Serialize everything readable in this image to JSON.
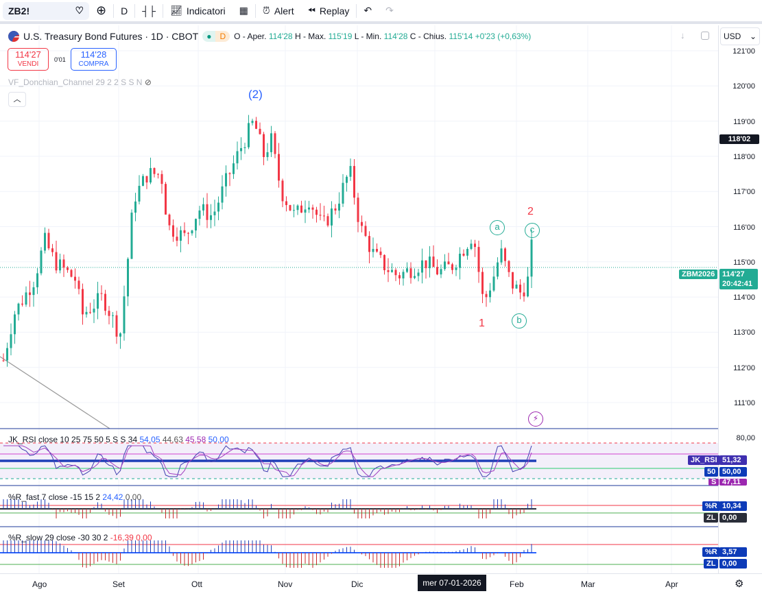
{
  "toolbar": {
    "symbol": "ZB2!",
    "interval": "D",
    "indicators": "Indicatori",
    "alert": "Alert",
    "replay": "Replay"
  },
  "legend": {
    "title": "U.S. Treasury Bond Futures · 1D · CBOT",
    "status": "D",
    "open_label": "O - Aper.",
    "open": "114'28",
    "high_label": "H - Max.",
    "high": "115'19",
    "low_label": "L - Min.",
    "low": "114'28",
    "close_label": "C - Chius.",
    "close": "115'14",
    "change": "+0'23 (+0,63%)"
  },
  "trade": {
    "sell_price": "114'27",
    "sell_label": "VENDI",
    "spread": "0'01",
    "buy_price": "114'28",
    "buy_label": "COMPRA"
  },
  "overlay": {
    "donchian": "VF_Donchian_Channel 29 2 2 S S N"
  },
  "currency": "USD",
  "price_axis": [
    "121'00",
    "120'00",
    "119'00",
    "118'00",
    "117'00",
    "116'00",
    "115'00",
    "114'00",
    "113'00",
    "112'00",
    "111'00"
  ],
  "price_tags": {
    "crosshair": "118'02",
    "contract": "ZBM2026",
    "last": "114'27",
    "countdown": "20:42:41"
  },
  "annotations": {
    "wave_2_paren": "(2)",
    "wave_1": "1",
    "wave_2": "2",
    "a": "a",
    "b": "b",
    "c": "c"
  },
  "rsi": {
    "title": "JK_RSI close 10 25 75 50 5 S S 34",
    "v1": "54,05",
    "v2": "44,63",
    "v3": "45,58",
    "v4": "50,00",
    "axis": "80,00",
    "tag1_label": "JK_RSI",
    "tag1": "51,32",
    "tag2_label": "50",
    "tag2": "50,00",
    "tag3_label": "S",
    "tag3": "47,11"
  },
  "rfast": {
    "title": "%R_fast 7 close -15 15 2",
    "v1": "24,42",
    "v2": "0,00",
    "tag1_label": "%R",
    "tag1": "10,34",
    "tag2_label": "ZL",
    "tag2": "0,00"
  },
  "rslow": {
    "title": "%R_slow 29 close -30 30 2",
    "v1": "-16,39",
    "v2": "0,00",
    "tag1_label": "%R",
    "tag1": "3,57",
    "tag2_label": "ZL",
    "tag2": "0,00"
  },
  "time_axis": [
    "Ago",
    "Set",
    "Ott",
    "Nov",
    "Dic",
    "Feb",
    "Mar",
    "Apr"
  ],
  "time_cursor": "mer 07-01-2026",
  "colors": {
    "up": "#22ab94",
    "down": "#f23645",
    "blue": "#2962ff",
    "rsi_tag": "#3f2fb0"
  }
}
